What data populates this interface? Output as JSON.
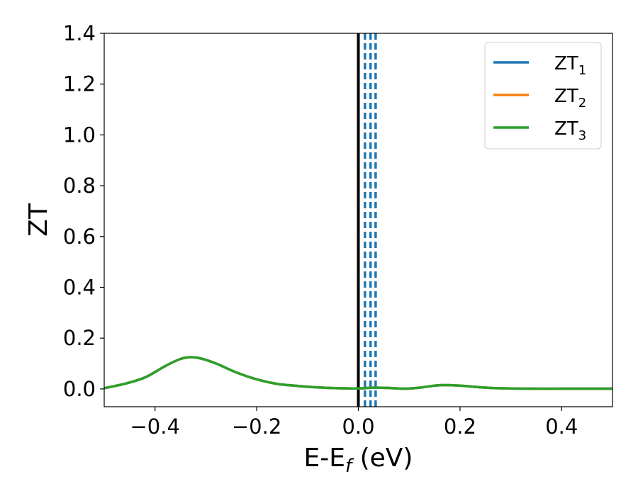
{
  "chart_data": {
    "type": "line",
    "xlabel": "E-E_f (eV)",
    "ylabel": "ZT",
    "xlim": [
      -0.5,
      0.5
    ],
    "ylim": [
      -0.07,
      1.4
    ],
    "xticks": [
      -0.4,
      -0.2,
      0.0,
      0.2,
      0.4
    ],
    "xtick_labels": [
      "−0.4",
      "−0.2",
      "0.0",
      "0.2",
      "0.4"
    ],
    "yticks": [
      0.0,
      0.2,
      0.4,
      0.6,
      0.8,
      1.0,
      1.2,
      1.4
    ],
    "ytick_labels": [
      "0.0",
      "0.2",
      "0.4",
      "0.6",
      "0.8",
      "1.0",
      "1.2",
      "1.4"
    ],
    "grid": false,
    "legend_position": "top-right",
    "legend_entries": [
      {
        "base": "ZT",
        "sub": "1",
        "color": "#1f77b4"
      },
      {
        "base": "ZT",
        "sub": "2",
        "color": "#ff7f0e"
      },
      {
        "base": "ZT",
        "sub": "3",
        "color": "#2ca02c"
      }
    ],
    "vertical_lines": [
      {
        "x": 0.0,
        "color": "#000000",
        "style": "solid"
      },
      {
        "x": 0.013,
        "color": "#1f77b4",
        "style": "dashed"
      },
      {
        "x": 0.024,
        "color": "#1f77b4",
        "style": "dashed"
      },
      {
        "x": 0.034,
        "color": "#1f77b4",
        "style": "dashed"
      }
    ],
    "x": [
      -0.5,
      -0.46,
      -0.42,
      -0.38,
      -0.35,
      -0.33,
      -0.31,
      -0.28,
      -0.24,
      -0.2,
      -0.16,
      -0.12,
      -0.08,
      -0.04,
      0.0,
      0.03,
      0.06,
      0.09,
      0.12,
      0.15,
      0.17,
      0.2,
      0.23,
      0.26,
      0.3,
      0.35,
      0.4,
      0.45,
      0.5
    ],
    "series": [
      {
        "name": "ZT$_1$",
        "color": "#1f77b4",
        "values": [
          0.003,
          0.02,
          0.045,
          0.09,
          0.118,
          0.125,
          0.12,
          0.1,
          0.065,
          0.038,
          0.02,
          0.012,
          0.006,
          0.003,
          0.002,
          0.005,
          0.004,
          0.001,
          0.005,
          0.013,
          0.015,
          0.013,
          0.008,
          0.004,
          0.002,
          0.001,
          0.001,
          0.001,
          0.001
        ]
      },
      {
        "name": "ZT$_2$",
        "color": "#ff7f0e",
        "values": [
          0.003,
          0.02,
          0.045,
          0.09,
          0.118,
          0.125,
          0.12,
          0.1,
          0.065,
          0.038,
          0.02,
          0.012,
          0.006,
          0.003,
          0.002,
          0.005,
          0.004,
          0.001,
          0.005,
          0.013,
          0.015,
          0.013,
          0.008,
          0.004,
          0.002,
          0.001,
          0.001,
          0.001,
          0.001
        ]
      },
      {
        "name": "ZT$_3$",
        "color": "#2ca02c",
        "values": [
          0.003,
          0.02,
          0.045,
          0.09,
          0.118,
          0.125,
          0.12,
          0.1,
          0.065,
          0.038,
          0.02,
          0.012,
          0.006,
          0.003,
          0.002,
          0.005,
          0.004,
          0.001,
          0.005,
          0.013,
          0.015,
          0.013,
          0.008,
          0.004,
          0.002,
          0.001,
          0.001,
          0.001,
          0.001
        ]
      }
    ]
  }
}
